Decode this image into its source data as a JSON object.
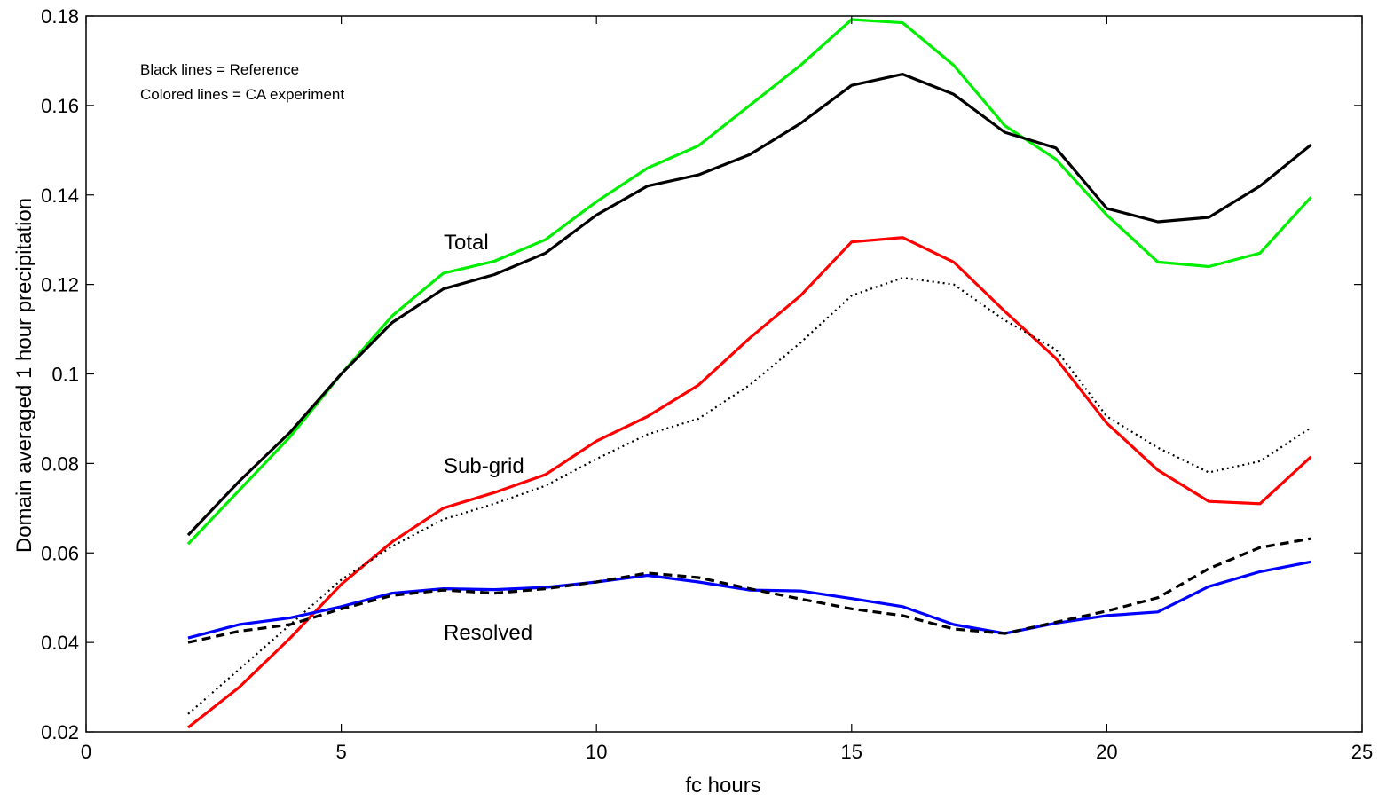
{
  "chart_data": {
    "type": "line",
    "title": "",
    "xlabel": "fc hours",
    "ylabel": "Domain averaged 1 hour precipitation",
    "xlim": [
      0,
      25
    ],
    "ylim": [
      0.02,
      0.18
    ],
    "xticks": [
      0,
      5,
      10,
      15,
      20,
      25
    ],
    "xtick_labels": [
      "0",
      "5",
      "10",
      "15",
      "20",
      "25"
    ],
    "yticks": [
      0.02,
      0.04,
      0.06,
      0.08,
      0.1,
      0.12,
      0.14,
      0.16,
      0.18
    ],
    "ytick_labels": [
      "0.02",
      "0.04",
      "0.06",
      "0.08",
      "0.1",
      "0.12",
      "0.14",
      "0.16",
      "0.18"
    ],
    "grid": false,
    "annotations": {
      "note_line1": "Black lines = Reference",
      "note_line2": "Colored lines = CA experiment",
      "total_label": "Total",
      "subgrid_label": "Sub-grid",
      "resolved_label": "Resolved"
    },
    "x": [
      2,
      3,
      4,
      5,
      6,
      7,
      8,
      9,
      10,
      11,
      12,
      13,
      14,
      15,
      16,
      17,
      18,
      19,
      20,
      21,
      22,
      23,
      24
    ],
    "series": [
      {
        "color": "#00ee00",
        "style": "solid",
        "values": [
          0.062,
          0.074,
          0.086,
          0.1,
          0.113,
          0.1225,
          0.1252,
          0.13,
          0.1385,
          0.146,
          0.151,
          0.16,
          0.169,
          0.1792,
          0.1785,
          0.169,
          0.1555,
          0.148,
          0.1355,
          0.125,
          0.124,
          0.127,
          0.1395
        ]
      },
      {
        "color": "#000000",
        "style": "solid",
        "values": [
          0.064,
          0.076,
          0.087,
          0.1,
          0.1115,
          0.119,
          0.1222,
          0.127,
          0.1355,
          0.142,
          0.1445,
          0.149,
          0.156,
          0.1645,
          0.167,
          0.1625,
          0.154,
          0.1505,
          0.137,
          0.134,
          0.135,
          0.142,
          0.1512
        ]
      },
      {
        "color": "#ff0000",
        "style": "solid",
        "values": [
          0.021,
          0.03,
          0.041,
          0.053,
          0.0625,
          0.07,
          0.0735,
          0.0775,
          0.085,
          0.0905,
          0.0975,
          0.108,
          0.1175,
          0.1295,
          0.1305,
          0.125,
          0.114,
          0.1035,
          0.089,
          0.0785,
          0.0715,
          0.071,
          0.0815
        ]
      },
      {
        "color": "#000000",
        "style": "dotted",
        "values": [
          0.024,
          0.034,
          0.044,
          0.054,
          0.0615,
          0.0675,
          0.071,
          0.075,
          0.081,
          0.0865,
          0.09,
          0.0975,
          0.107,
          0.1175,
          0.1215,
          0.12,
          0.112,
          0.1055,
          0.0905,
          0.0835,
          0.078,
          0.0805,
          0.088
        ]
      },
      {
        "color": "#0000ff",
        "style": "solid",
        "values": [
          0.041,
          0.044,
          0.0455,
          0.048,
          0.051,
          0.052,
          0.0518,
          0.0523,
          0.0535,
          0.055,
          0.0535,
          0.0517,
          0.0515,
          0.0498,
          0.048,
          0.044,
          0.042,
          0.0443,
          0.046,
          0.0468,
          0.0525,
          0.0558,
          0.058
        ]
      },
      {
        "color": "#000000",
        "style": "dashed",
        "values": [
          0.04,
          0.0425,
          0.044,
          0.0475,
          0.0505,
          0.0517,
          0.051,
          0.052,
          0.0535,
          0.0555,
          0.0545,
          0.052,
          0.0497,
          0.0475,
          0.046,
          0.043,
          0.042,
          0.0445,
          0.047,
          0.05,
          0.0565,
          0.0612,
          0.0632
        ]
      }
    ]
  }
}
